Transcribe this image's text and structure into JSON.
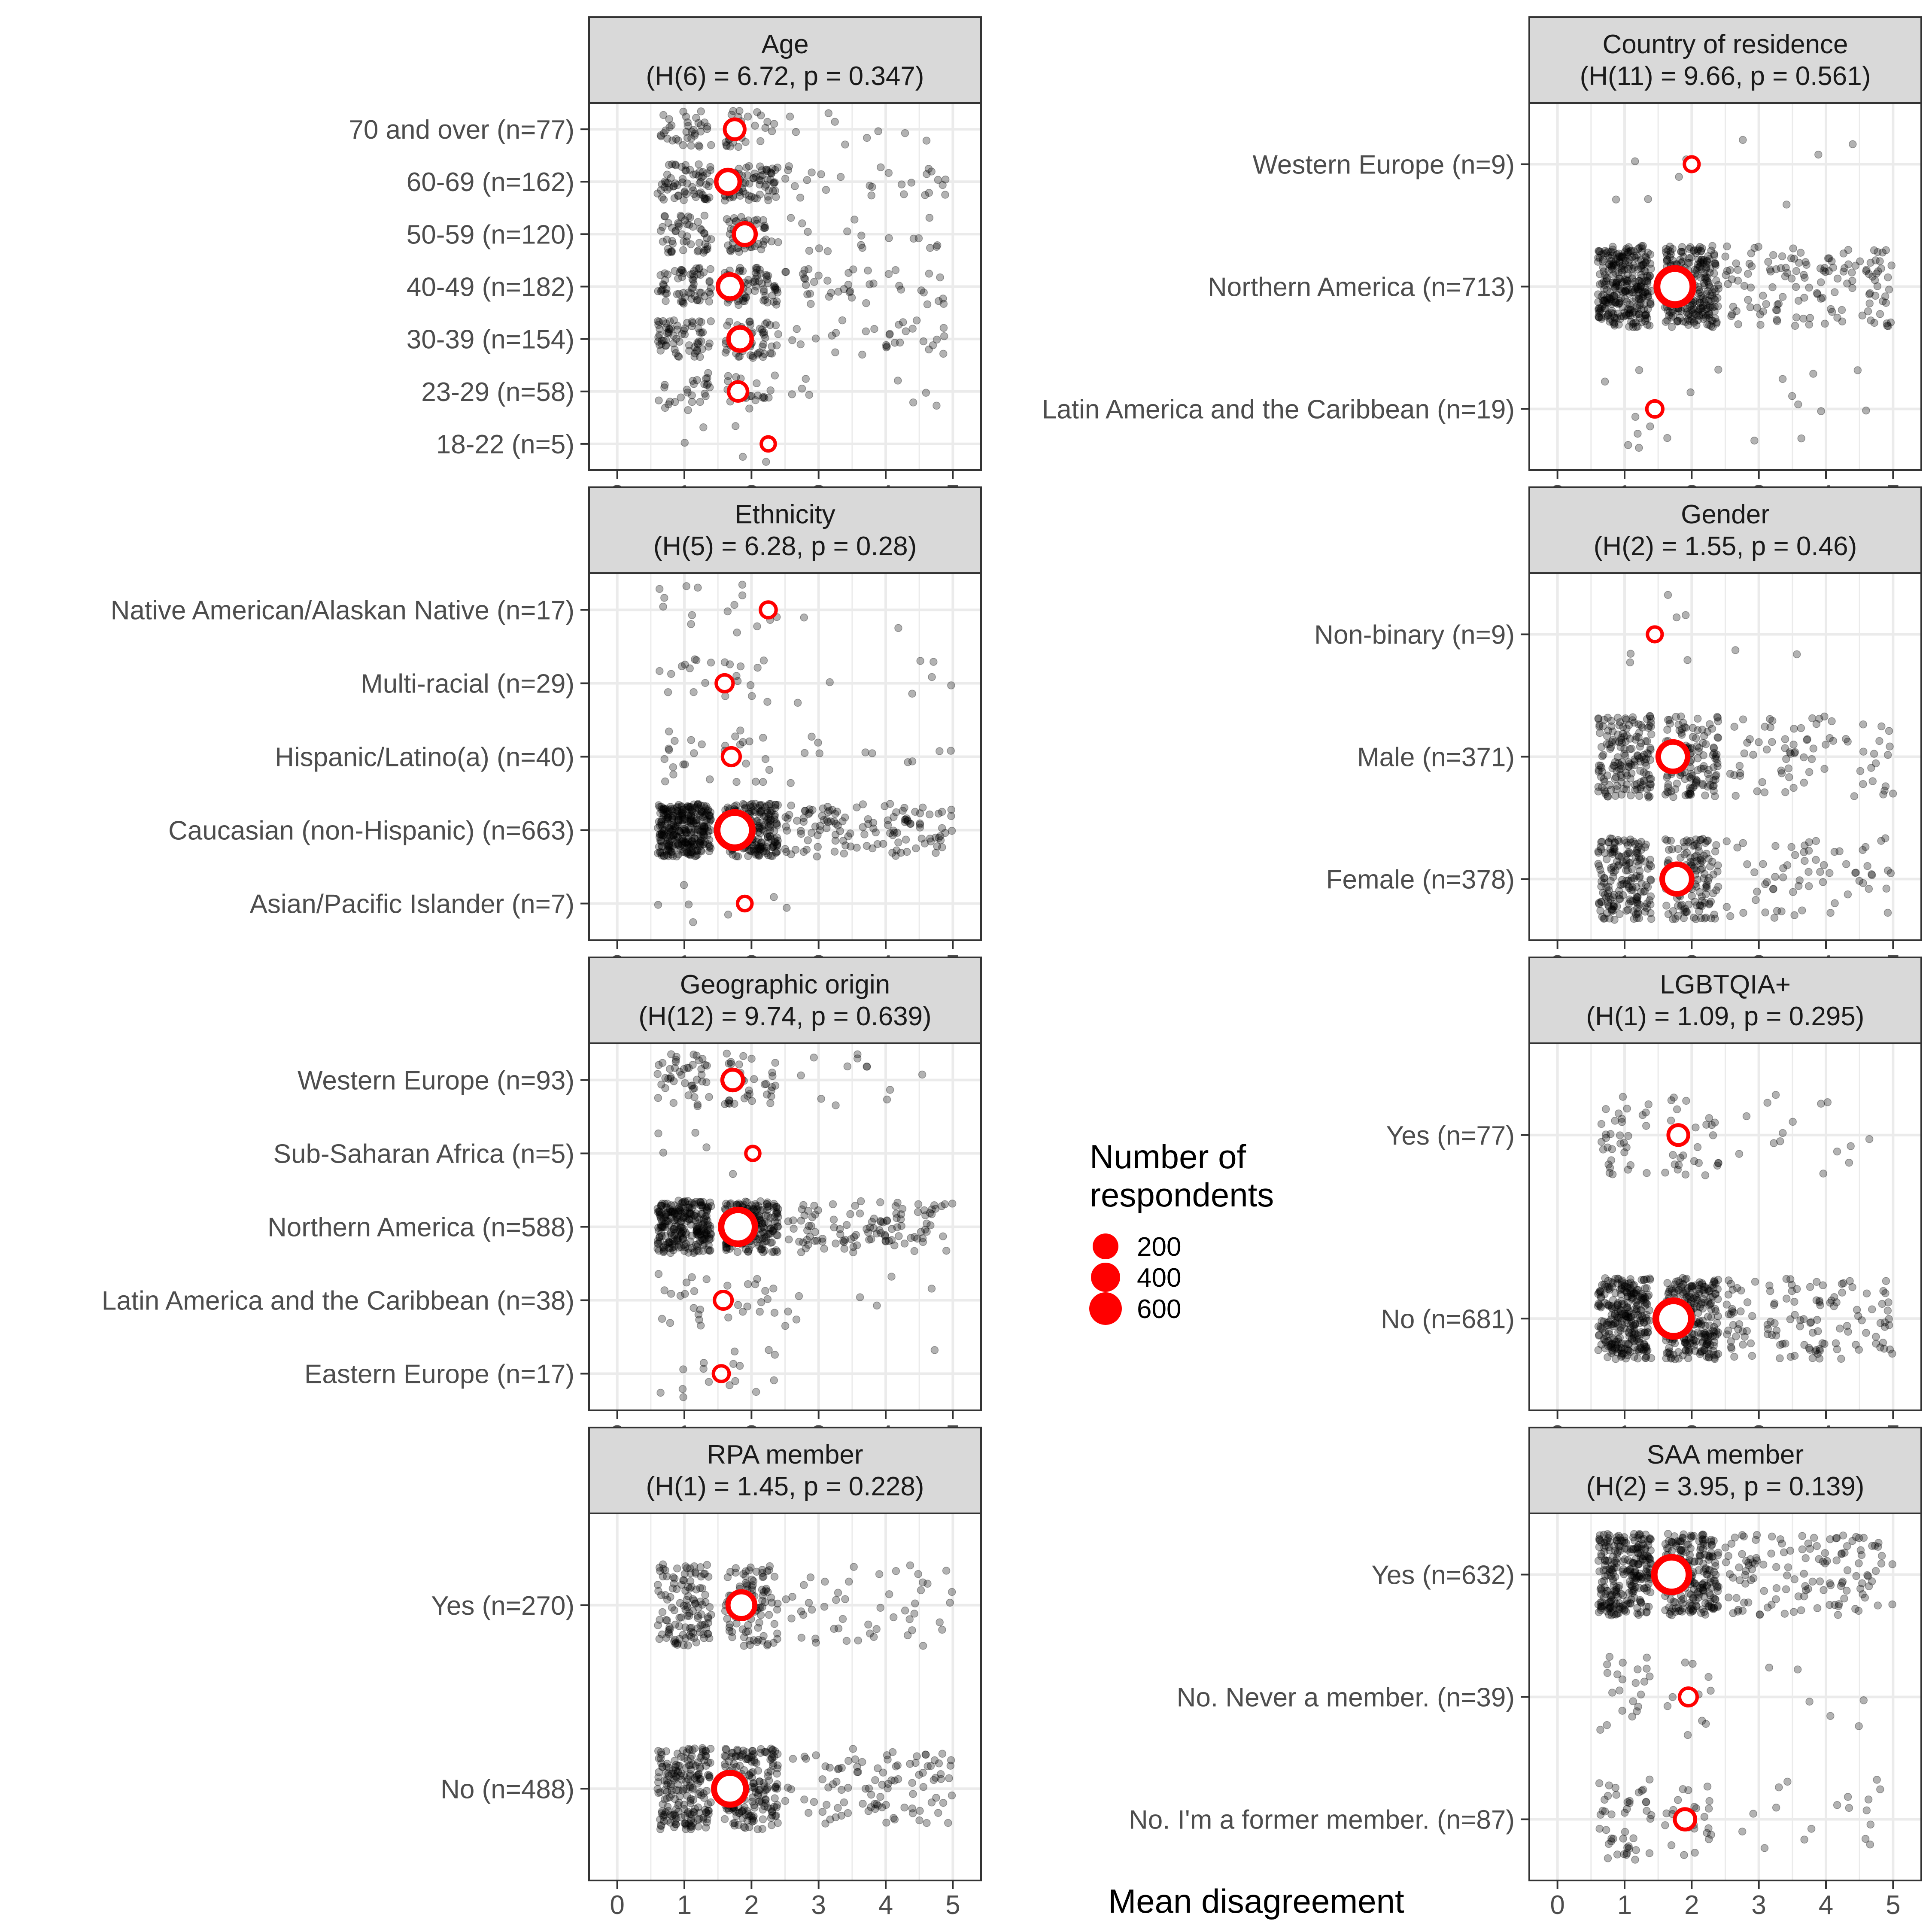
{
  "figure": {
    "x_axis_title": "Mean disagreement",
    "legend": {
      "title_line1": "Number of",
      "title_line2": "respondents",
      "entries": [
        {
          "label": "200",
          "value": 200
        },
        {
          "label": "400",
          "value": 400
        },
        {
          "label": "600",
          "value": 600
        }
      ]
    },
    "colors": {
      "mean_point": "#ff0000",
      "jitter_point": "#000000",
      "strip_fill": "#d9d9d9",
      "grid": "#ebebeb"
    }
  },
  "chart_data": [
    {
      "type": "scatter",
      "title": "Age",
      "subtitle": "(H(6) = 6.72, p = 0.347)",
      "xlim": [
        0,
        5
      ],
      "xticks": [
        0,
        1,
        2,
        3,
        4,
        5
      ],
      "categories": [
        "70 and over (n=77)",
        "60-69 (n=162)",
        "50-59 (n=120)",
        "40-49 (n=182)",
        "30-39 (n=154)",
        "23-29 (n=58)",
        "18-22 (n=5)"
      ],
      "n": [
        77,
        162,
        120,
        182,
        154,
        58,
        5
      ],
      "mean": [
        1.75,
        1.65,
        1.9,
        1.68,
        1.83,
        1.8,
        2.25
      ],
      "spread": {
        "core_weight": 0.8,
        "tail_max": 4.9
      }
    },
    {
      "type": "scatter",
      "title": "Country of residence",
      "subtitle": "(H(11) = 9.66, p = 0.561)",
      "xlim": [
        0,
        5
      ],
      "xticks": [
        0,
        1,
        2,
        3,
        4,
        5
      ],
      "categories": [
        "Western Europe (n=9)",
        "Northern America (n=713)",
        "Latin America and the Caribbean (n=19)"
      ],
      "n": [
        9,
        713,
        19
      ],
      "mean": [
        2.0,
        1.75,
        1.45
      ],
      "spread": {
        "core_weight": 0.8,
        "tail_max": 5.0
      }
    },
    {
      "type": "scatter",
      "title": "Ethnicity",
      "subtitle": "(H(5) = 6.28, p = 0.28)",
      "xlim": [
        0,
        5
      ],
      "xticks": [
        0,
        1,
        2,
        3,
        4,
        5
      ],
      "categories": [
        "Native American/Alaskan Native (n=17)",
        "Multi-racial (n=29)",
        "Hispanic/Latino(a) (n=40)",
        "Caucasian (non-Hispanic) (n=663)",
        "Asian/Pacific Islander (n=7)"
      ],
      "n": [
        17,
        29,
        40,
        663,
        7
      ],
      "mean": [
        2.25,
        1.6,
        1.7,
        1.75,
        1.9
      ],
      "spread": {
        "core_weight": 0.8,
        "tail_max": 5.0
      }
    },
    {
      "type": "scatter",
      "title": "Gender",
      "subtitle": "(H(2) = 1.55, p = 0.46)",
      "xlim": [
        0,
        5
      ],
      "xticks": [
        0,
        1,
        2,
        3,
        4,
        5
      ],
      "categories": [
        "Non-binary (n=9)",
        "Male (n=371)",
        "Female (n=378)"
      ],
      "n": [
        9,
        371,
        378
      ],
      "mean": [
        1.45,
        1.72,
        1.78
      ],
      "spread": {
        "core_weight": 0.8,
        "tail_max": 5.0
      }
    },
    {
      "type": "scatter",
      "title": "Geographic origin",
      "subtitle": "(H(12) = 9.74, p = 0.639)",
      "xlim": [
        0,
        5
      ],
      "xticks": [
        0,
        1,
        2,
        3,
        4,
        5
      ],
      "categories": [
        "Western Europe (n=93)",
        "Sub-Saharan Africa (n=5)",
        "Northern America (n=588)",
        "Latin America and the Caribbean (n=38)",
        "Eastern Europe (n=17)"
      ],
      "n": [
        93,
        5,
        588,
        38,
        17
      ],
      "mean": [
        1.72,
        2.02,
        1.8,
        1.58,
        1.55
      ],
      "spread": {
        "core_weight": 0.8,
        "tail_max": 5.0
      }
    },
    {
      "type": "scatter",
      "title": "LGBTQIA+",
      "subtitle": "(H(1) = 1.09, p = 0.295)",
      "xlim": [
        0,
        5
      ],
      "xticks": [
        0,
        1,
        2,
        3,
        4,
        5
      ],
      "categories": [
        "Yes (n=77)",
        "No (n=681)"
      ],
      "n": [
        77,
        681
      ],
      "mean": [
        1.8,
        1.73
      ],
      "spread": {
        "core_weight": 0.8,
        "tail_max": 5.0
      }
    },
    {
      "type": "scatter",
      "title": "RPA member",
      "subtitle": "(H(1) = 1.45, p = 0.228)",
      "xlim": [
        0,
        5
      ],
      "xticks": [
        0,
        1,
        2,
        3,
        4,
        5
      ],
      "categories": [
        "Yes (n=270)",
        "No (n=488)"
      ],
      "n": [
        270,
        488
      ],
      "mean": [
        1.85,
        1.68
      ],
      "spread": {
        "core_weight": 0.8,
        "tail_max": 5.0
      }
    },
    {
      "type": "scatter",
      "title": "SAA member",
      "subtitle": "(H(2) = 3.95, p = 0.139)",
      "xlim": [
        0,
        5
      ],
      "xticks": [
        0,
        1,
        2,
        3,
        4,
        5
      ],
      "categories": [
        "Yes (n=632)",
        "No. Never a member. (n=39)",
        "No. I'm a former member. (n=87)"
      ],
      "n": [
        632,
        39,
        87
      ],
      "mean": [
        1.7,
        1.95,
        1.9
      ],
      "spread": {
        "core_weight": 0.8,
        "tail_max": 5.0
      }
    }
  ]
}
